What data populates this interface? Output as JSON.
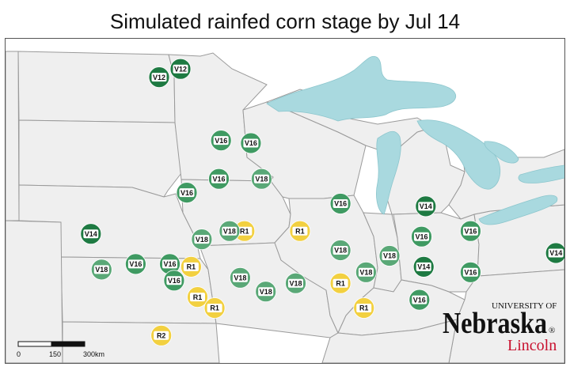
{
  "title": "Simulated rainfed corn stage by Jul 14",
  "colors": {
    "V12": "#1e7a42",
    "V14": "#1e7a42",
    "V16": "#3f9a62",
    "V18": "#5aa877",
    "R1": "#f2d040",
    "R2": "#f2d040",
    "badge": "#ffffff",
    "state_fill": "#efefef",
    "state_border": "#9a9a9a",
    "lake": "#a9d9df"
  },
  "markers": [
    {
      "stage": "V12",
      "lon": -97.3,
      "lat": 47.9
    },
    {
      "stage": "V12",
      "lon": -96.3,
      "lat": 48.2
    },
    {
      "stage": "V16",
      "lon": -94.4,
      "lat": 45.6
    },
    {
      "stage": "V16",
      "lon": -93.0,
      "lat": 45.5
    },
    {
      "stage": "V16",
      "lon": -94.5,
      "lat": 44.2
    },
    {
      "stage": "V18",
      "lon": -92.5,
      "lat": 44.2
    },
    {
      "stage": "V16",
      "lon": -96.0,
      "lat": 43.7
    },
    {
      "stage": "R1",
      "lon": -93.3,
      "lat": 42.3
    },
    {
      "stage": "R1",
      "lon": -90.7,
      "lat": 42.3
    },
    {
      "stage": "V16",
      "lon": -88.8,
      "lat": 43.3
    },
    {
      "stage": "V14",
      "lon": -84.8,
      "lat": 43.2
    },
    {
      "stage": "V14",
      "lon": -100.5,
      "lat": 42.2
    },
    {
      "stage": "V18",
      "lon": -95.3,
      "lat": 42.0
    },
    {
      "stage": "V18",
      "lon": -94.0,
      "lat": 42.3
    },
    {
      "stage": "V16",
      "lon": -85.0,
      "lat": 42.1
    },
    {
      "stage": "V16",
      "lon": -82.7,
      "lat": 42.3
    },
    {
      "stage": "V18",
      "lon": -100.0,
      "lat": 40.9
    },
    {
      "stage": "V16",
      "lon": -98.4,
      "lat": 41.1
    },
    {
      "stage": "V16",
      "lon": -96.8,
      "lat": 41.1
    },
    {
      "stage": "R1",
      "lon": -95.8,
      "lat": 41.0
    },
    {
      "stage": "V18",
      "lon": -88.8,
      "lat": 41.6
    },
    {
      "stage": "V18",
      "lon": -86.5,
      "lat": 41.4
    },
    {
      "stage": "V14",
      "lon": -78.7,
      "lat": 41.5
    },
    {
      "stage": "V14",
      "lon": -84.9,
      "lat": 41.0
    },
    {
      "stage": "V16",
      "lon": -96.6,
      "lat": 40.5
    },
    {
      "stage": "V18",
      "lon": -93.5,
      "lat": 40.6
    },
    {
      "stage": "R1",
      "lon": -88.8,
      "lat": 40.4
    },
    {
      "stage": "V18",
      "lon": -87.6,
      "lat": 40.8
    },
    {
      "stage": "V16",
      "lon": -82.7,
      "lat": 40.8
    },
    {
      "stage": "R1",
      "lon": -95.5,
      "lat": 39.9
    },
    {
      "stage": "R1",
      "lon": -94.7,
      "lat": 39.5
    },
    {
      "stage": "V18",
      "lon": -92.3,
      "lat": 40.1
    },
    {
      "stage": "V18",
      "lon": -90.9,
      "lat": 40.4
    },
    {
      "stage": "R1",
      "lon": -87.7,
      "lat": 39.5
    },
    {
      "stage": "V16",
      "lon": -85.1,
      "lat": 39.8
    },
    {
      "stage": "R2",
      "lon": -97.2,
      "lat": 38.5
    }
  ],
  "scale_bar": {
    "labels": [
      "0",
      "150",
      "300km"
    ]
  },
  "logo": {
    "university_of": "UNIVERSITY OF",
    "nebraska": "Nebraska",
    "lincoln": "Lincoln",
    "reg": "®"
  }
}
